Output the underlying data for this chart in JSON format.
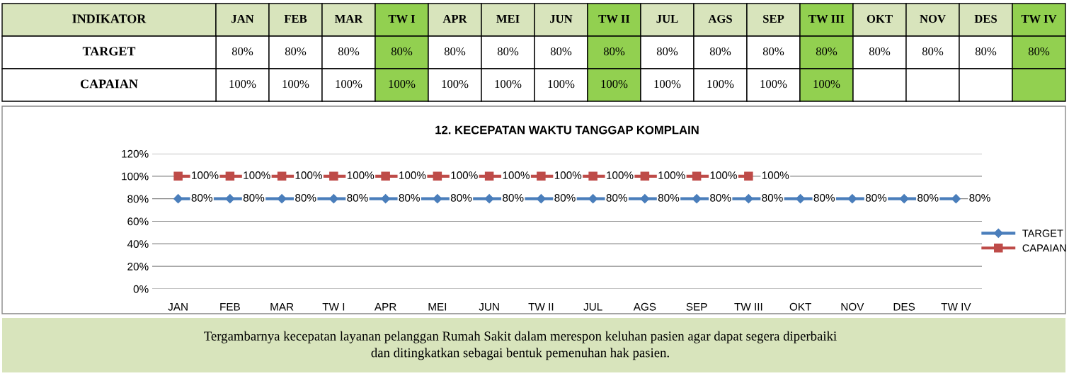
{
  "chart_data": {
    "type": "line",
    "title": "12. KECEPATAN WAKTU TANGGAP KOMPLAIN",
    "categories": [
      "JAN",
      "FEB",
      "MAR",
      "TW I",
      "APR",
      "MEI",
      "JUN",
      "TW II",
      "JUL",
      "AGS",
      "SEP",
      "TW III",
      "OKT",
      "NOV",
      "DES",
      "TW IV"
    ],
    "series": [
      {
        "name": "TARGET",
        "color": "#4a7ebb",
        "marker": "diamond",
        "values": [
          80,
          80,
          80,
          80,
          80,
          80,
          80,
          80,
          80,
          80,
          80,
          80,
          80,
          80,
          80,
          80
        ],
        "value_labels": [
          "80%",
          "80%",
          "80%",
          "80%",
          "80%",
          "80%",
          "80%",
          "80%",
          "80%",
          "80%",
          "80%",
          "80%",
          "80%",
          "80%",
          "80%",
          "80%"
        ]
      },
      {
        "name": "CAPAIAN",
        "color": "#be4b48",
        "marker": "square",
        "values": [
          100,
          100,
          100,
          100,
          100,
          100,
          100,
          100,
          100,
          100,
          100,
          100,
          null,
          null,
          null,
          null
        ],
        "value_labels": [
          "100%",
          "100%",
          "100%",
          "100%",
          "100%",
          "100%",
          "100%",
          "100%",
          "100%",
          "100%",
          "100%",
          "100%",
          null,
          null,
          null,
          null
        ]
      }
    ],
    "ylim": [
      0,
      120
    ],
    "yticks": [
      {
        "value": 0,
        "label": "0%"
      },
      {
        "value": 20,
        "label": "20%"
      },
      {
        "value": 40,
        "label": "40%"
      },
      {
        "value": 60,
        "label": "60%"
      },
      {
        "value": 80,
        "label": "80%"
      },
      {
        "value": 100,
        "label": "100%"
      },
      {
        "value": 120,
        "label": "120%"
      }
    ],
    "grid": "y",
    "legend": "right",
    "line_style": "solid",
    "annotations": [
      "INDIKATOR",
      "Tergambarnya kecepatan layanan pelanggan Rumah Sakit dalam merespon keluhan pasien agar dapat segera diperbaiki\ndan ditingkatkan sebagai bentuk pemenuhan hak pasien."
    ]
  }
}
